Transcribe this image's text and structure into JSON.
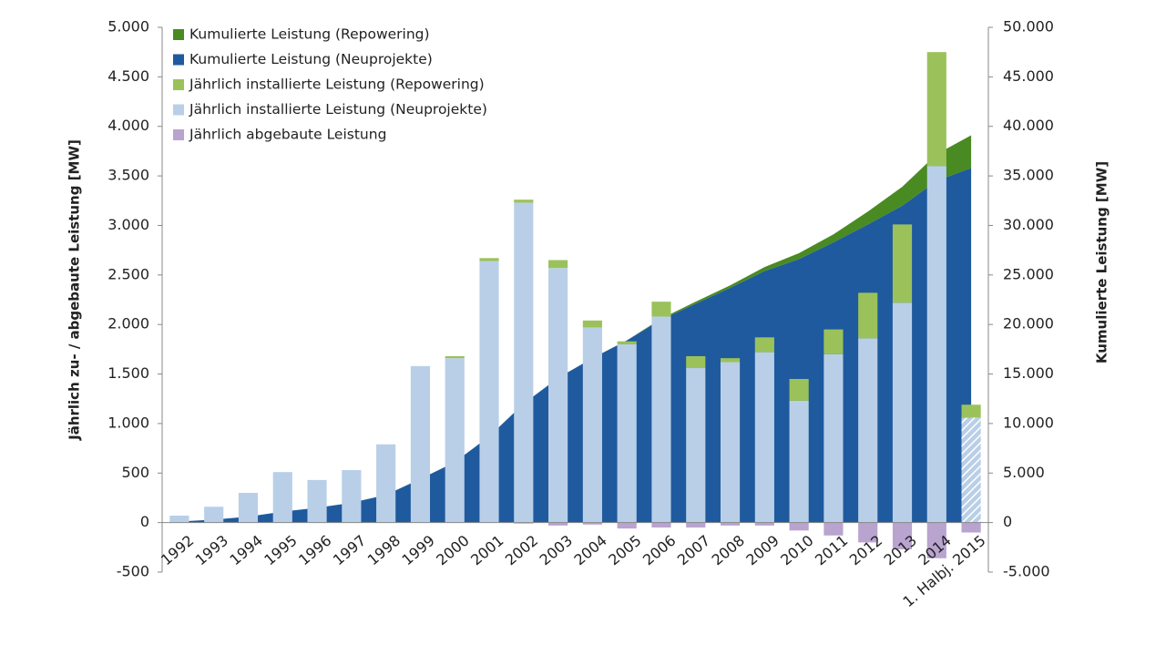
{
  "chart_data": {
    "type": "bar",
    "y_label": "Jährlich zu- / abgebaute Leistung [MW]",
    "y2_label": "Kumulierte Leistung [MW]",
    "categories": [
      "1992",
      "1993",
      "1994",
      "1995",
      "1996",
      "1997",
      "1998",
      "1999",
      "2000",
      "2001",
      "2002",
      "2003",
      "2004",
      "2005",
      "2006",
      "2007",
      "2008",
      "2009",
      "2010",
      "2011",
      "2012",
      "2013",
      "2014",
      "1. Halbj. 2015"
    ],
    "ylim": [
      -500,
      5000
    ],
    "yticks": [
      -500,
      0,
      500,
      {
        "value": 1000,
        "label": "1.000"
      },
      {
        "value": 1500,
        "label": "1.500"
      },
      {
        "value": 2000,
        "label": "2.000"
      },
      {
        "value": 2500,
        "label": "2.500"
      },
      {
        "value": 3000,
        "label": "3.000"
      },
      {
        "value": 3500,
        "label": "3.500"
      },
      {
        "value": 4000,
        "label": "4.000"
      },
      {
        "value": 4500,
        "label": "4.500"
      },
      {
        "value": 5000,
        "label": "5.000"
      }
    ],
    "y2lim": [
      -5000,
      50000
    ],
    "y2ticks": [
      {
        "value": -5000,
        "label": "-5.000"
      },
      0,
      {
        "value": 5000,
        "label": "5.000"
      },
      {
        "value": 10000,
        "label": "10.000"
      },
      {
        "value": 15000,
        "label": "15.000"
      },
      {
        "value": 20000,
        "label": "20.000"
      },
      {
        "value": 25000,
        "label": "25.000"
      },
      {
        "value": 30000,
        "label": "30.000"
      },
      {
        "value": 35000,
        "label": "35.000"
      },
      {
        "value": 40000,
        "label": "40.000"
      },
      {
        "value": 45000,
        "label": "45.000"
      },
      {
        "value": 50000,
        "label": "50.000"
      }
    ],
    "series": [
      {
        "name": "Kumulierte Leistung (Repowering)",
        "type": "area",
        "axis": "y2",
        "stack": "cum",
        "color": "#4a8a22",
        "values": [
          0,
          0,
          0,
          0,
          0,
          0,
          0,
          0,
          0,
          0,
          0,
          0,
          0,
          0,
          100,
          200,
          250,
          400,
          600,
          800,
          1300,
          1900,
          2700,
          3300
        ]
      },
      {
        "name": "Kumulierte Leistung (Neuprojekte)",
        "type": "area",
        "axis": "y2",
        "stack": "cum",
        "color": "#1f5a9e",
        "values": [
          100,
          300,
          600,
          1100,
          1500,
          2000,
          2800,
          4400,
          6100,
          8700,
          12000,
          14600,
          16600,
          18400,
          20500,
          22100,
          23700,
          25400,
          26600,
          28300,
          30100,
          32000,
          34500,
          35800
        ]
      },
      {
        "name": "Jährlich installierte Leistung (Repowering)",
        "type": "bar",
        "stack": "annual",
        "color": "#9bc25a",
        "values": [
          0,
          0,
          0,
          0,
          0,
          0,
          0,
          0,
          20,
          30,
          30,
          80,
          70,
          30,
          150,
          120,
          40,
          150,
          220,
          250,
          460,
          790,
          1150,
          130
        ]
      },
      {
        "name": "Jährlich installierte Leistung (Neuprojekte)",
        "type": "bar",
        "stack": "annual",
        "color": "#b9cfe8",
        "values": [
          70,
          160,
          300,
          510,
          430,
          530,
          790,
          1580,
          1660,
          2640,
          3230,
          2570,
          1970,
          1800,
          2080,
          1560,
          1620,
          1720,
          1230,
          1700,
          1860,
          2220,
          3600,
          1060
        ]
      },
      {
        "name": "Jährlich abgebaute Leistung",
        "type": "bar",
        "stack": "annual",
        "color": "#b9a3cf",
        "values": [
          0,
          0,
          0,
          0,
          0,
          0,
          0,
          0,
          0,
          0,
          -10,
          -30,
          -20,
          -60,
          -50,
          -50,
          -30,
          -30,
          -80,
          -130,
          -200,
          -270,
          -360,
          -100
        ]
      }
    ]
  }
}
